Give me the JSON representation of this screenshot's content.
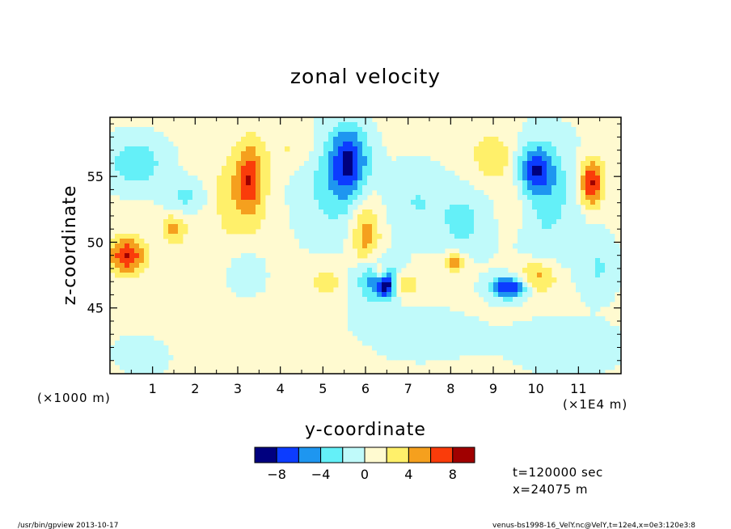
{
  "chart_data": {
    "type": "heatmap",
    "title": "zonal velocity",
    "xlabel": "y-coordinate",
    "ylabel": "z-coordinate",
    "x_unit_left": "(×1000 m)",
    "x_unit_right": "(×1E4 m)",
    "xlim": [
      0,
      12
    ],
    "ylim": [
      40,
      59.5
    ],
    "xticks": [
      {
        "value": 1,
        "label": "1"
      },
      {
        "value": 2,
        "label": "2"
      },
      {
        "value": 3,
        "label": "3"
      },
      {
        "value": 4,
        "label": "4"
      },
      {
        "value": 5,
        "label": "5"
      },
      {
        "value": 6,
        "label": "6"
      },
      {
        "value": 7,
        "label": "7"
      },
      {
        "value": 8,
        "label": "8"
      },
      {
        "value": 9,
        "label": "9"
      },
      {
        "value": 10,
        "label": "10"
      },
      {
        "value": 11,
        "label": "11"
      }
    ],
    "yticks": [
      {
        "value": 45,
        "label": "45"
      },
      {
        "value": 50,
        "label": "50"
      },
      {
        "value": 55,
        "label": "55"
      }
    ],
    "colorbar": {
      "levels": [
        -10,
        -8,
        -6,
        -4,
        -2,
        0,
        2,
        4,
        6,
        8,
        10
      ],
      "colors": [
        "#00007f",
        "#0c3cff",
        "#1e96f0",
        "#64f0f8",
        "#c0fafa",
        "#fffad0",
        "#fff06a",
        "#f5a01e",
        "#fa3c0a",
        "#a00000"
      ],
      "labels": [
        {
          "value": -8,
          "label": "−8"
        },
        {
          "value": -4,
          "label": "−4"
        },
        {
          "value": 0,
          "label": "0"
        },
        {
          "value": 4,
          "label": "4"
        },
        {
          "value": 8,
          "label": "8"
        }
      ]
    },
    "background_level": 0.5,
    "features": [
      {
        "y": 5.6,
        "z": 56.2,
        "value": -7.5,
        "sy": 0.32,
        "sz": 1.9
      },
      {
        "y": 5.2,
        "z": 54,
        "value": -3,
        "sy": 0.6,
        "sz": 3
      },
      {
        "y": 10.0,
        "z": 55.5,
        "value": -7,
        "sy": 0.3,
        "sz": 1.3
      },
      {
        "y": 10.2,
        "z": 53,
        "value": -3,
        "sy": 0.7,
        "sz": 3.5
      },
      {
        "y": 9.4,
        "z": 46.6,
        "value": -9,
        "sy": 0.32,
        "sz": 0.6
      },
      {
        "y": 6.2,
        "z": 47.2,
        "value": -7,
        "sy": 0.4,
        "sz": 1.2
      },
      {
        "y": 6.5,
        "z": 46.6,
        "value": -6,
        "sy": 0.15,
        "sz": 0.6
      },
      {
        "y": 0.6,
        "z": 56,
        "value": -4,
        "sy": 0.5,
        "sz": 1.4
      },
      {
        "y": 1.8,
        "z": 53.5,
        "value": -3,
        "sy": 0.35,
        "sz": 0.9
      },
      {
        "y": 8.3,
        "z": 51.5,
        "value": -3,
        "sy": 0.4,
        "sz": 1.8
      },
      {
        "y": 3.2,
        "z": 47.5,
        "value": -2.5,
        "sy": 0.3,
        "sz": 1.2
      },
      {
        "y": 11.5,
        "z": 48,
        "value": -2.5,
        "sy": 0.3,
        "sz": 1.5
      },
      {
        "y": 7.2,
        "z": 53,
        "value": -2.5,
        "sy": 0.5,
        "sz": 2
      },
      {
        "y": 11.3,
        "z": 54.5,
        "value": 8.5,
        "sy": 0.2,
        "sz": 1.3
      },
      {
        "y": 0.4,
        "z": 49,
        "value": 7.5,
        "sy": 0.3,
        "sz": 1.0
      },
      {
        "y": 3.3,
        "z": 55,
        "value": 5.5,
        "sy": 0.22,
        "sz": 1.8
      },
      {
        "y": 3.0,
        "z": 53.5,
        "value": 3,
        "sy": 0.45,
        "sz": 2.5
      },
      {
        "y": 6.0,
        "z": 50.5,
        "value": 5,
        "sy": 0.25,
        "sz": 2.2
      },
      {
        "y": 6.35,
        "z": 47.8,
        "value": 5,
        "sy": 0.12,
        "sz": 0.5
      },
      {
        "y": 6.9,
        "z": 46.8,
        "value": 4.5,
        "sy": 0.2,
        "sz": 0.7
      },
      {
        "y": 10.0,
        "z": 47.3,
        "value": 5,
        "sy": 0.35,
        "sz": 0.9
      },
      {
        "y": 8.1,
        "z": 48.5,
        "value": 5,
        "sy": 0.18,
        "sz": 0.5
      },
      {
        "y": 1.5,
        "z": 51,
        "value": 4,
        "sy": 0.2,
        "sz": 0.8
      },
      {
        "y": 9.0,
        "z": 56.5,
        "value": 3,
        "sy": 0.4,
        "sz": 1.5
      },
      {
        "y": 5.2,
        "z": 47,
        "value": 2.5,
        "sy": 0.5,
        "sz": 1.0
      },
      {
        "y": 9.5,
        "z": 53,
        "value": 2.5,
        "sy": 0.3,
        "sz": 2
      },
      {
        "y": 2.0,
        "z": 44,
        "value": 1.5,
        "sy": 1.2,
        "sz": 1.5
      },
      {
        "y": 4.3,
        "z": 57,
        "value": 2,
        "sy": 0.4,
        "sz": 1.0
      },
      {
        "y": 0.8,
        "z": 42,
        "value": -1.5,
        "sy": 0.6,
        "sz": 1.5
      },
      {
        "y": 7.0,
        "z": 43,
        "value": -1.5,
        "sy": 1.2,
        "sz": 1.5
      },
      {
        "y": 4.5,
        "z": 41.5,
        "value": 1.5,
        "sy": 1.0,
        "sz": 1.2
      },
      {
        "y": 10.8,
        "z": 42,
        "value": -1.5,
        "sy": 1.0,
        "sz": 1.5
      }
    ]
  },
  "info": {
    "time": "t=120000 sec",
    "xpos": "x=24075 m"
  },
  "footer": {
    "left": "/usr/bin/gpview  2013-10-17",
    "right": "venus-bs1998-16_VelY.nc@VelY,t=12e4,x=0e3:120e3:8"
  }
}
